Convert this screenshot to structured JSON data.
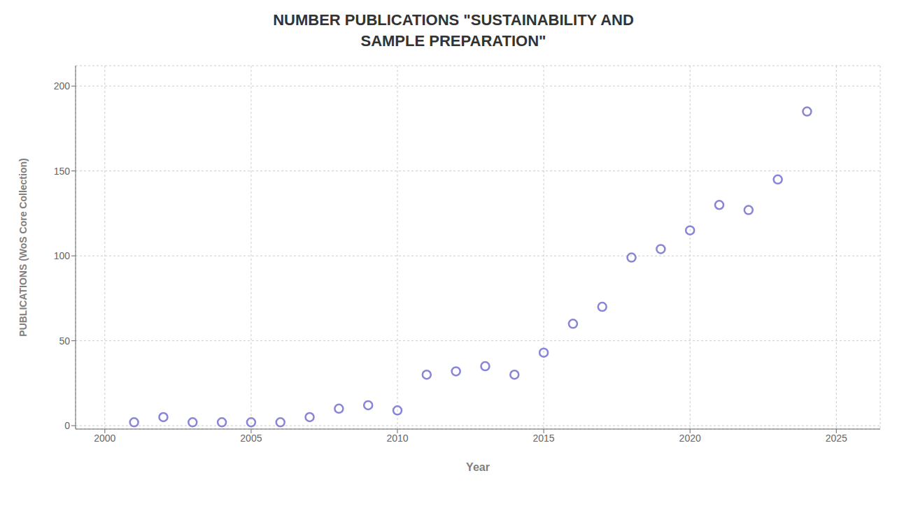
{
  "chart_data": {
    "type": "scatter",
    "title": "NUMBER PUBLICATIONS \"SUSTAINABILITY AND\nSAMPLE PREPARATION\"",
    "xlabel": "Year",
    "ylabel": "PUBLICATIONS (WoS Core Collection)",
    "x": [
      2001,
      2002,
      2003,
      2004,
      2005,
      2006,
      2007,
      2008,
      2009,
      2010,
      2011,
      2012,
      2013,
      2014,
      2015,
      2016,
      2017,
      2018,
      2019,
      2020,
      2021,
      2022,
      2023,
      2024
    ],
    "values": [
      2,
      5,
      2,
      2,
      2,
      2,
      5,
      10,
      12,
      9,
      30,
      32,
      35,
      30,
      43,
      60,
      70,
      99,
      104,
      115,
      130,
      127,
      145,
      185
    ],
    "xlim": [
      1999,
      2026.5
    ],
    "ylim": [
      -2,
      212
    ],
    "xticks": [
      2000,
      2005,
      2010,
      2015,
      2020,
      2025
    ],
    "yticks": [
      0,
      50,
      100,
      150,
      200
    ],
    "grid": true,
    "marker": "circle",
    "color": "#8884d8"
  }
}
